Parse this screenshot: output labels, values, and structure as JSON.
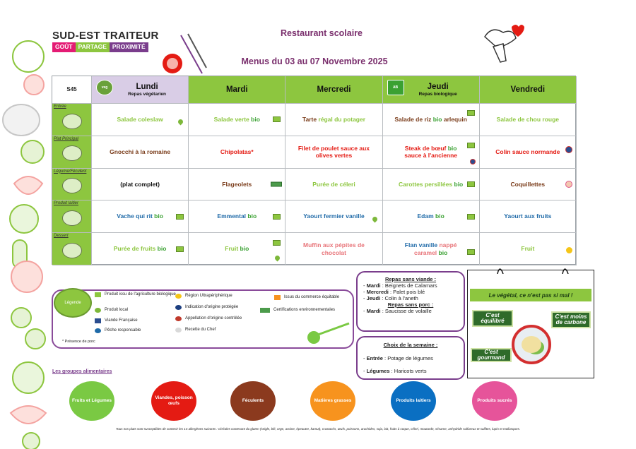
{
  "header": {
    "logo_name": "SUD-EST TRAITEUR",
    "tagline": [
      "GOÛT",
      "PARTAGE",
      "PROXIMITÉ"
    ],
    "title": "Restaurant scolaire",
    "subtitle": "Menus du 03 au 07 Novembre 2025"
  },
  "menu": {
    "week": "S45",
    "days": [
      {
        "label": "Lundi",
        "sub": "Repas végétarien"
      },
      {
        "label": "Mardi",
        "sub": ""
      },
      {
        "label": "Mercredi",
        "sub": ""
      },
      {
        "label": "Jeudi",
        "sub": "Repas biologique"
      },
      {
        "label": "Vendredi",
        "sub": ""
      }
    ],
    "rows": [
      {
        "label": "Entrée",
        "items": [
          {
            "text": "Salade coleslaw"
          },
          {
            "text": "Salade verte",
            "bio": "bio"
          },
          {
            "text": "Tarte",
            "text2": "régal du potager"
          },
          {
            "text": "Salade de riz",
            "bio": "bio",
            "text3": "arlequin"
          },
          {
            "text": "Salade de chou rouge"
          }
        ]
      },
      {
        "label": "Plat Principal",
        "items": [
          {
            "text": "Gnocchi à la romaine"
          },
          {
            "text": "Chipolatas*"
          },
          {
            "text": "Filet de poulet sauce aux olives vertes"
          },
          {
            "text": "Steak de bœuf",
            "bio": "bio",
            "text3": "sauce à l'ancienne"
          },
          {
            "text": "Colin sauce normande"
          }
        ]
      },
      {
        "label": "Légume/Féculent",
        "items": [
          {
            "text": "(plat complet)"
          },
          {
            "text": "Flageolets"
          },
          {
            "text": "Purée de céleri"
          },
          {
            "text": "Carottes persillées",
            "bio": "bio"
          },
          {
            "text": "Coquillettes"
          }
        ]
      },
      {
        "label": "Produit laitier",
        "items": [
          {
            "text": "Vache qui rit",
            "bio": "bio"
          },
          {
            "text": "Emmental",
            "bio": "bio"
          },
          {
            "text": "Yaourt fermier vanille"
          },
          {
            "text": "Edam",
            "bio": "bio"
          },
          {
            "text": "Yaourt aux fruits"
          }
        ]
      },
      {
        "label": "Dessert",
        "items": [
          {
            "text": "Purée de fruits",
            "bio": "bio"
          },
          {
            "text": "Fruit",
            "bio": "bio"
          },
          {
            "text": "Muffin aux pépites de chocolat"
          },
          {
            "text": "Flan vanille",
            "text2": "nappé caramel",
            "bio": "bio"
          },
          {
            "text": "Fruit"
          }
        ]
      }
    ]
  },
  "legend": {
    "title": "Légende",
    "items": [
      "Produit issu de l'agriculture biologique",
      "Produit local",
      "Viande Française",
      "Pêche responsable",
      "Région Ultrapériphérique",
      "Indication d'origine protégée",
      "Appellation d'origine contrôlée",
      "Recette du Chef",
      "Issus du commerce équitable",
      "Certifications environnementales"
    ],
    "note": "* Présence de porc"
  },
  "repas_sans_viande": {
    "title": "Repas sans viande :",
    "lines": [
      {
        "day": "Mardi",
        "dish": "Beignets de Calamars"
      },
      {
        "day": "Mercredi",
        "dish": "Palet pois blé"
      },
      {
        "day": "Jeudi",
        "dish": "Colin à l'aneth"
      }
    ],
    "porc_title": "Repas sans porc :",
    "porc_lines": [
      {
        "day": "Mardi",
        "dish": "Saucisse de volaille"
      }
    ]
  },
  "choix_semaine": {
    "title": "Choix de la semaine :",
    "lines": [
      {
        "label": "Entrée",
        "dish": "Potage de légumes"
      },
      {
        "label": "Légumes",
        "dish": "Haricots verts"
      }
    ]
  },
  "vegetal": {
    "title": "Le végétal, ce n'est pas si mal !",
    "chips": [
      "C'est équilibré",
      "C'est moins de carbone",
      "C'est gourmand"
    ]
  },
  "groups": {
    "title": "Les groupes alimentaires",
    "items": [
      {
        "label": "Fruits et Légumes",
        "color": "#7ac943"
      },
      {
        "label": "Viandes, poisson œufs",
        "color": "#e41b13"
      },
      {
        "label": "Féculents",
        "color": "#8b3a1e"
      },
      {
        "label": "Matières grasses",
        "color": "#f7931e"
      },
      {
        "label": "Produits laitiers",
        "color": "#0a6fc2"
      },
      {
        "label": "Produits sucrés",
        "color": "#e6549a"
      }
    ]
  },
  "allergens_note": "Tous nos plats sont susceptibles de contenir les 14 allergènes suivants : céréales contenant du gluten (seigle, blé, orge, avoine, épeautre, kamut), crustacés, œufs, poissons, arachides, soja, lait, fruits à coque, céleri, moutarde, sésame, anhydride sulfureux et sulfites, lupin et mollusques."
}
